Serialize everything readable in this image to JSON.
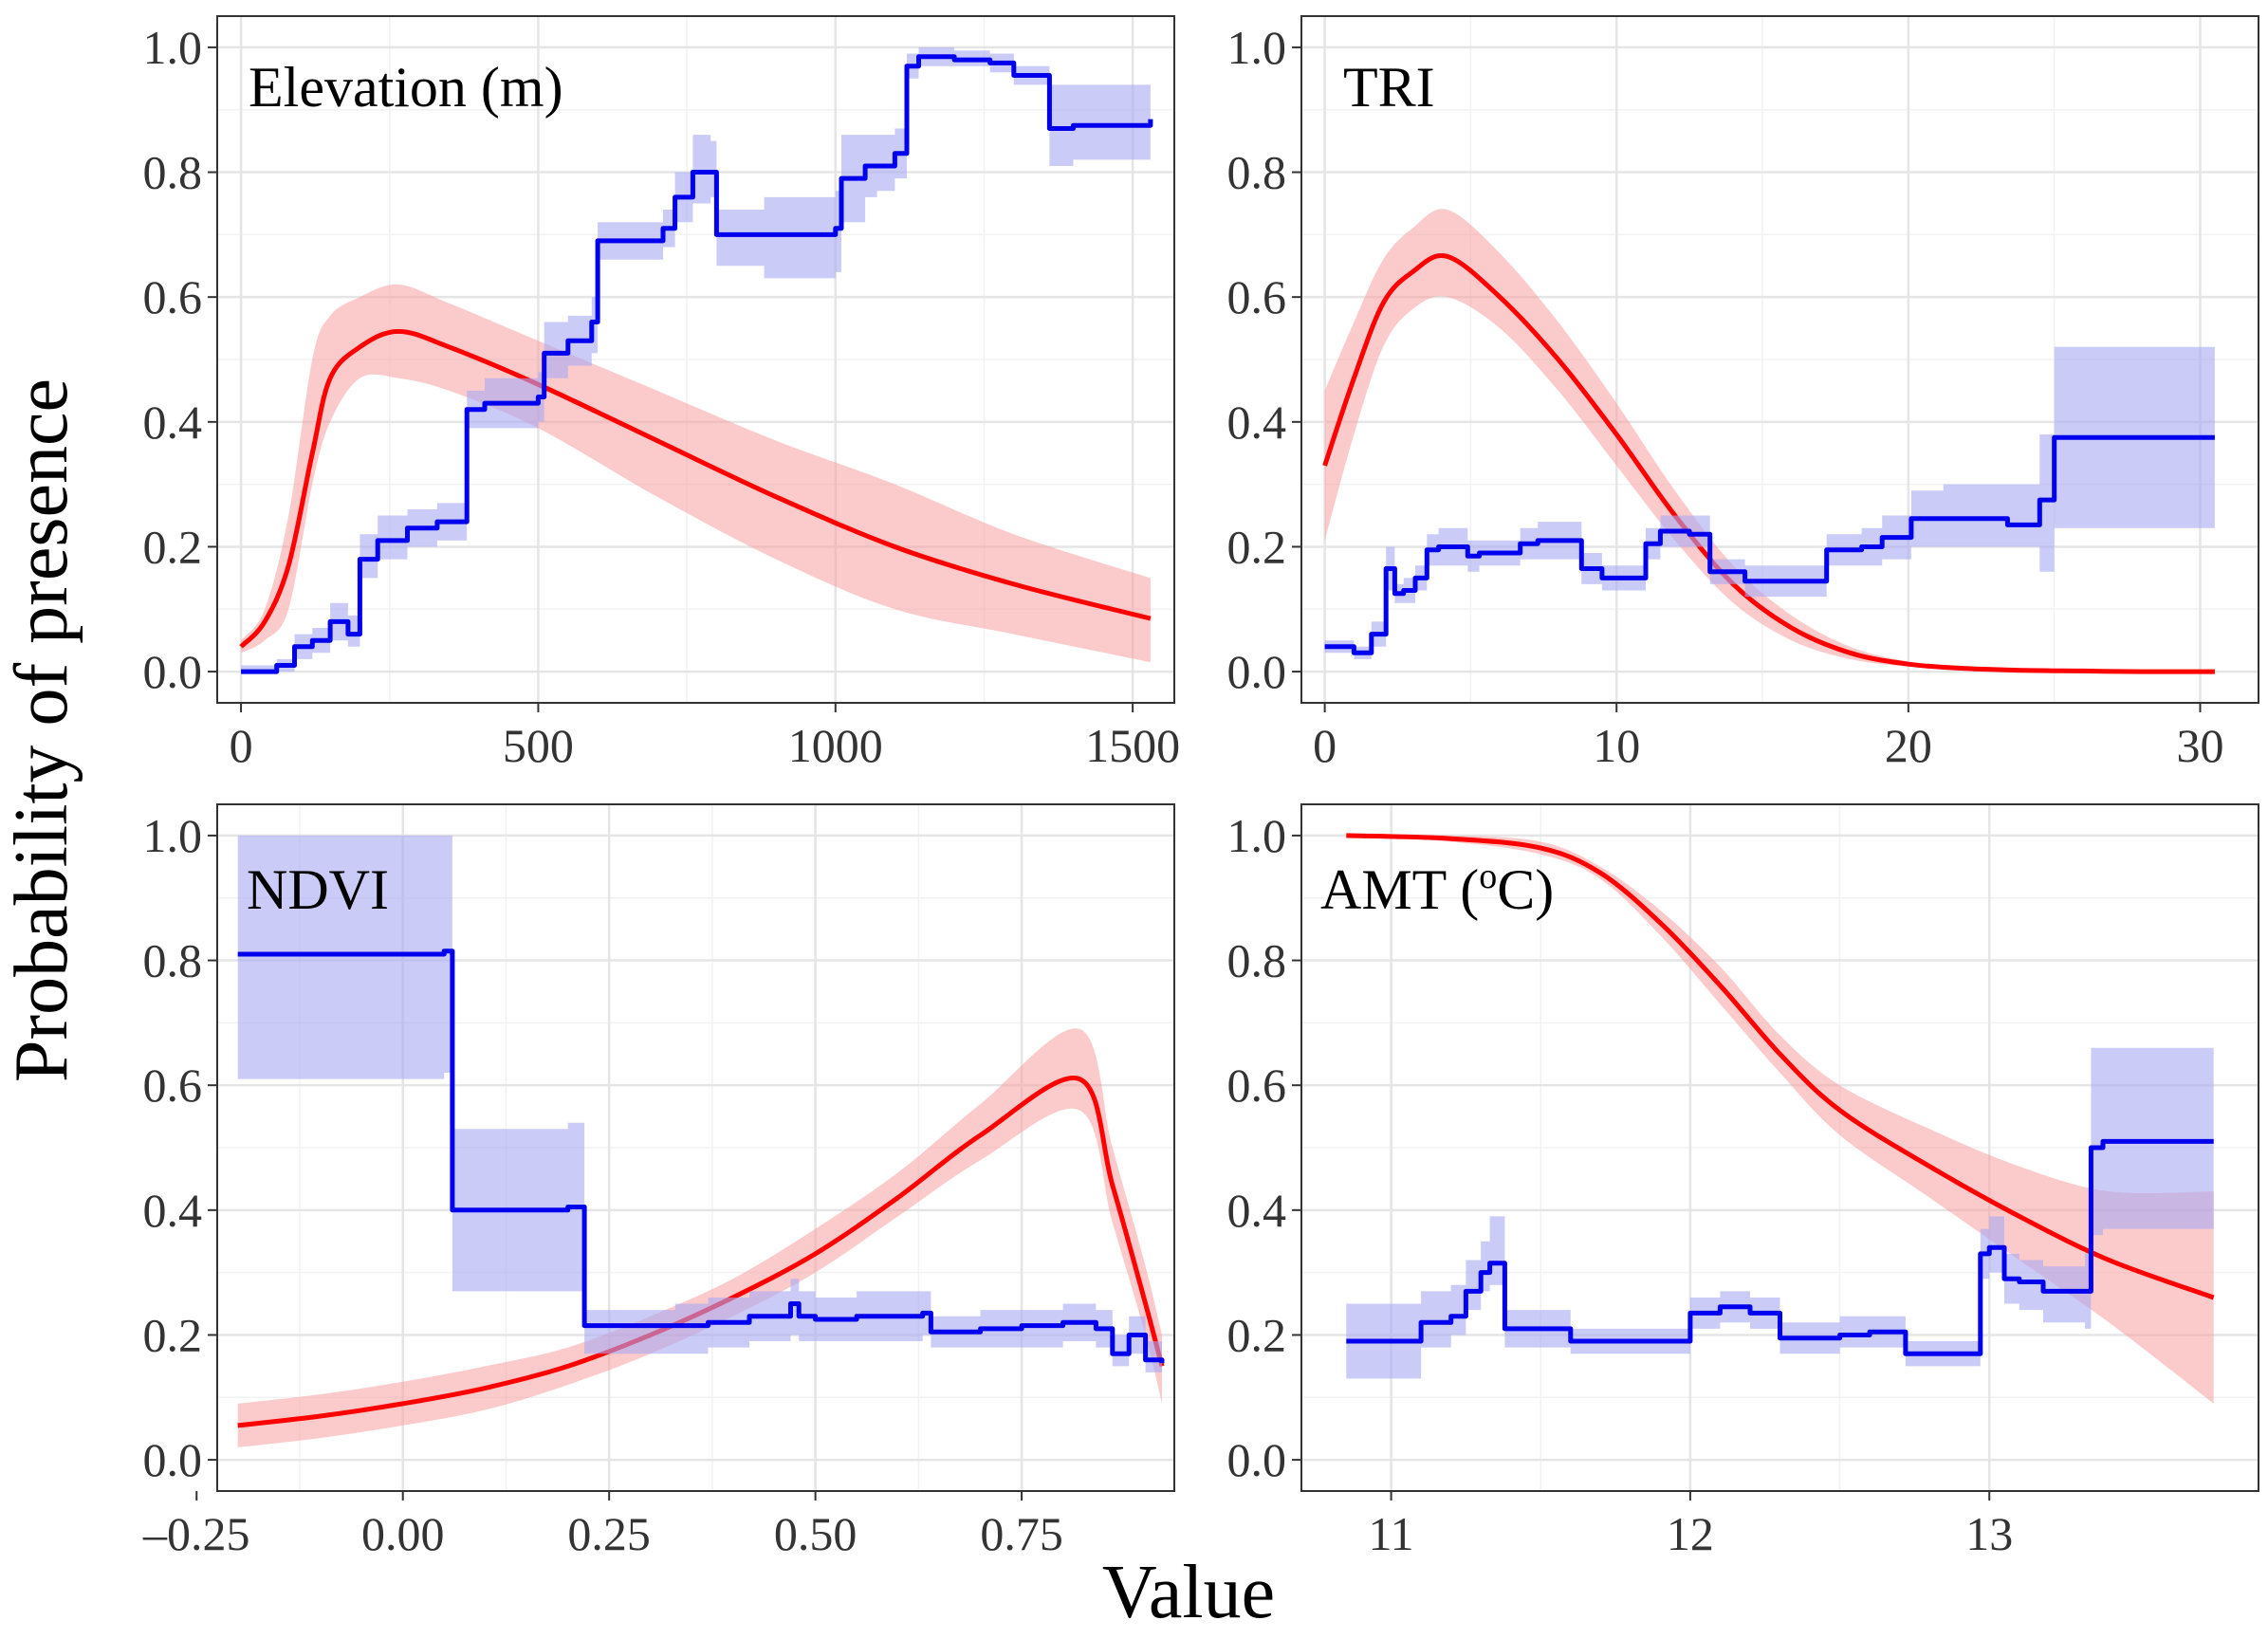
{
  "figure": {
    "ylabel": "Probability of presence",
    "xlabel": "Value",
    "colors": {
      "model_a": "#ff0000",
      "model_a_band": "#f8a0a0",
      "model_b": "#0000ee",
      "model_b_band": "#a8a8f4"
    }
  },
  "chart_data": [
    {
      "type": "line",
      "title": "Elevation (m)",
      "xlim": [
        -40,
        1570
      ],
      "ylim": [
        -0.05,
        1.05
      ],
      "xticks": [
        0,
        500,
        1000,
        1500
      ],
      "xtick_labels": [
        "0",
        "500",
        "1000",
        "1500"
      ],
      "yticks": [
        0,
        0.2,
        0.4,
        0.6,
        0.8,
        1.0
      ],
      "ytick_labels": [
        "0.0",
        "0.2",
        "0.4",
        "0.6",
        "0.8",
        "1.0"
      ],
      "series": [
        {
          "name": "red",
          "kind": "smooth",
          "x": [
            0,
            40,
            80,
            120,
            150,
            200,
            265,
            350,
            500,
            700,
            900,
            1100,
            1300,
            1530
          ],
          "y": [
            0.04,
            0.08,
            0.17,
            0.35,
            0.47,
            0.52,
            0.545,
            0.52,
            0.46,
            0.37,
            0.28,
            0.2,
            0.14,
            0.085
          ],
          "lo": [
            0.03,
            0.05,
            0.1,
            0.3,
            0.4,
            0.47,
            0.47,
            0.45,
            0.39,
            0.28,
            0.18,
            0.1,
            0.06,
            0.015
          ],
          "hi": [
            0.05,
            0.1,
            0.25,
            0.5,
            0.57,
            0.6,
            0.62,
            0.59,
            0.53,
            0.45,
            0.37,
            0.3,
            0.22,
            0.15
          ]
        },
        {
          "name": "blue",
          "kind": "step",
          "x": [
            0,
            60,
            90,
            120,
            150,
            180,
            200,
            230,
            280,
            330,
            380,
            410,
            500,
            510,
            550,
            590,
            600,
            710,
            730,
            760,
            790,
            800,
            880,
            1000,
            1010,
            1050,
            1070,
            1100,
            1120,
            1140,
            1200,
            1260,
            1300,
            1350,
            1360,
            1400,
            1530
          ],
          "y": [
            0.0,
            0.01,
            0.04,
            0.05,
            0.08,
            0.06,
            0.18,
            0.21,
            0.23,
            0.24,
            0.42,
            0.43,
            0.44,
            0.51,
            0.53,
            0.56,
            0.69,
            0.71,
            0.76,
            0.8,
            0.8,
            0.7,
            0.7,
            0.71,
            0.79,
            0.81,
            0.81,
            0.83,
            0.97,
            0.985,
            0.98,
            0.975,
            0.955,
            0.955,
            0.87,
            0.875,
            0.885
          ],
          "lo": [
            0.0,
            0.0,
            0.02,
            0.03,
            0.05,
            0.04,
            0.15,
            0.18,
            0.2,
            0.21,
            0.39,
            0.39,
            0.4,
            0.47,
            0.49,
            0.51,
            0.66,
            0.68,
            0.72,
            0.75,
            0.76,
            0.65,
            0.63,
            0.64,
            0.72,
            0.76,
            0.77,
            0.79,
            0.95,
            0.97,
            0.97,
            0.96,
            0.94,
            0.94,
            0.81,
            0.82,
            0.83
          ],
          "hi": [
            0.01,
            0.02,
            0.06,
            0.07,
            0.11,
            0.09,
            0.22,
            0.25,
            0.26,
            0.27,
            0.45,
            0.47,
            0.48,
            0.56,
            0.57,
            0.6,
            0.72,
            0.74,
            0.8,
            0.86,
            0.85,
            0.74,
            0.76,
            0.77,
            0.86,
            0.86,
            0.86,
            0.87,
            0.99,
            1.0,
            0.995,
            0.99,
            0.97,
            0.97,
            0.94,
            0.94,
            0.945
          ]
        }
      ]
    },
    {
      "type": "line",
      "title": "TRI",
      "xlim": [
        -0.8,
        32
      ],
      "ylim": [
        -0.05,
        1.05
      ],
      "xticks": [
        0,
        10,
        20,
        30
      ],
      "xtick_labels": [
        "0",
        "10",
        "20",
        "30"
      ],
      "yticks": [
        0,
        0.2,
        0.4,
        0.6,
        0.8,
        1.0
      ],
      "ytick_labels": [
        "0.0",
        "0.2",
        "0.4",
        "0.6",
        "0.8",
        "1.0"
      ],
      "series": [
        {
          "name": "red",
          "kind": "smooth",
          "x": [
            0,
            1,
            2,
            3,
            4.2,
            6,
            8,
            10,
            12,
            14,
            16,
            18,
            20,
            22,
            24,
            26,
            28,
            30.5
          ],
          "y": [
            0.33,
            0.47,
            0.59,
            0.64,
            0.665,
            0.6,
            0.5,
            0.38,
            0.25,
            0.14,
            0.07,
            0.03,
            0.012,
            0.005,
            0.002,
            0.001,
            0.0,
            0.0
          ],
          "lo": [
            0.21,
            0.38,
            0.52,
            0.58,
            0.6,
            0.55,
            0.45,
            0.33,
            0.21,
            0.11,
            0.05,
            0.02,
            0.008,
            0.003,
            0.001,
            0.0,
            0.0,
            0.0
          ],
          "hi": [
            0.45,
            0.56,
            0.66,
            0.71,
            0.74,
            0.67,
            0.56,
            0.43,
            0.29,
            0.17,
            0.09,
            0.04,
            0.016,
            0.007,
            0.003,
            0.001,
            0.0,
            0.0
          ],
          "band_end_hi": [
            20,
            0.0
          ]
        },
        {
          "name": "blue",
          "kind": "step",
          "x": [
            0,
            1,
            1.6,
            2.1,
            2.4,
            2.7,
            3.1,
            3.5,
            3.9,
            4.9,
            5.3,
            6.7,
            7.3,
            8.1,
            8.8,
            9.5,
            10.7,
            11,
            11.5,
            12.5,
            13.2,
            13.5,
            14.4,
            17.2,
            18.4,
            19.1,
            20.1,
            21.2,
            23.4,
            23.9,
            24.5,
            25,
            30.5
          ],
          "y": [
            0.04,
            0.03,
            0.06,
            0.165,
            0.125,
            0.13,
            0.15,
            0.195,
            0.2,
            0.185,
            0.19,
            0.205,
            0.21,
            0.21,
            0.165,
            0.15,
            0.15,
            0.205,
            0.225,
            0.22,
            0.16,
            0.16,
            0.145,
            0.195,
            0.2,
            0.215,
            0.245,
            0.245,
            0.235,
            0.235,
            0.275,
            0.375,
            0.375
          ],
          "lo": [
            0.03,
            0.02,
            0.04,
            0.13,
            0.11,
            0.11,
            0.13,
            0.17,
            0.17,
            0.16,
            0.17,
            0.18,
            0.18,
            0.18,
            0.14,
            0.13,
            0.13,
            0.18,
            0.2,
            0.2,
            0.14,
            0.14,
            0.12,
            0.17,
            0.17,
            0.18,
            0.2,
            0.2,
            0.2,
            0.2,
            0.16,
            0.23,
            0.23
          ],
          "hi": [
            0.05,
            0.04,
            0.08,
            0.2,
            0.14,
            0.15,
            0.17,
            0.22,
            0.23,
            0.21,
            0.21,
            0.23,
            0.24,
            0.24,
            0.19,
            0.17,
            0.17,
            0.23,
            0.25,
            0.25,
            0.18,
            0.18,
            0.17,
            0.22,
            0.23,
            0.25,
            0.29,
            0.3,
            0.3,
            0.3,
            0.38,
            0.52,
            0.52
          ]
        }
      ]
    },
    {
      "type": "line",
      "title": "NDVI",
      "xlim": [
        -0.225,
        0.935
      ],
      "ylim": [
        -0.05,
        1.05
      ],
      "xticks": [
        -0.25,
        0,
        0.25,
        0.5,
        0.75
      ],
      "xtick_labels": [
        "–0.25",
        "0.00",
        "0.25",
        "0.50",
        "0.75"
      ],
      "yticks": [
        0,
        0.2,
        0.4,
        0.6,
        0.8,
        1.0
      ],
      "ytick_labels": [
        "0.0",
        "0.2",
        "0.4",
        "0.6",
        "0.8",
        "1.0"
      ],
      "series": [
        {
          "name": "red",
          "kind": "smooth",
          "x": [
            -0.2,
            -0.1,
            0.0,
            0.1,
            0.2,
            0.3,
            0.4,
            0.5,
            0.6,
            0.7,
            0.82,
            0.86,
            0.9,
            0.92
          ],
          "y": [
            0.055,
            0.07,
            0.09,
            0.115,
            0.15,
            0.2,
            0.26,
            0.33,
            0.42,
            0.52,
            0.61,
            0.44,
            0.25,
            0.15
          ],
          "lo": [
            0.02,
            0.035,
            0.055,
            0.08,
            0.12,
            0.17,
            0.23,
            0.3,
            0.39,
            0.48,
            0.56,
            0.38,
            0.2,
            0.09
          ],
          "hi": [
            0.09,
            0.105,
            0.125,
            0.15,
            0.18,
            0.23,
            0.29,
            0.37,
            0.46,
            0.57,
            0.69,
            0.5,
            0.31,
            0.2
          ]
        },
        {
          "name": "blue",
          "kind": "step",
          "x": [
            -0.2,
            0.05,
            0.06,
            0.2,
            0.22,
            0.33,
            0.37,
            0.42,
            0.47,
            0.48,
            0.5,
            0.55,
            0.6,
            0.63,
            0.64,
            0.7,
            0.75,
            0.8,
            0.84,
            0.86,
            0.88,
            0.9,
            0.92
          ],
          "y": [
            0.81,
            0.815,
            0.4,
            0.405,
            0.215,
            0.215,
            0.22,
            0.23,
            0.25,
            0.23,
            0.225,
            0.23,
            0.23,
            0.235,
            0.205,
            0.21,
            0.215,
            0.22,
            0.21,
            0.17,
            0.2,
            0.16,
            0.155
          ],
          "lo": [
            0.61,
            0.62,
            0.27,
            0.27,
            0.17,
            0.17,
            0.18,
            0.19,
            0.2,
            0.19,
            0.19,
            0.19,
            0.19,
            0.2,
            0.18,
            0.18,
            0.18,
            0.19,
            0.18,
            0.15,
            0.17,
            0.14,
            0.14
          ],
          "hi": [
            1.0,
            1.0,
            0.53,
            0.54,
            0.24,
            0.25,
            0.26,
            0.27,
            0.29,
            0.27,
            0.26,
            0.27,
            0.27,
            0.27,
            0.23,
            0.24,
            0.24,
            0.25,
            0.24,
            0.2,
            0.23,
            0.19,
            0.18
          ]
        }
      ]
    },
    {
      "type": "line",
      "title": "AMT (",
      "title_sup": "o",
      "title_end": "C)",
      "xlim": [
        10.7,
        13.9
      ],
      "ylim": [
        -0.05,
        1.05
      ],
      "xticks": [
        11,
        12,
        13
      ],
      "xtick_labels": [
        "11",
        "12",
        "13"
      ],
      "yticks": [
        0,
        0.2,
        0.4,
        0.6,
        0.8,
        1.0
      ],
      "ytick_labels": [
        "0.0",
        "0.2",
        "0.4",
        "0.6",
        "0.8",
        "1.0"
      ],
      "series": [
        {
          "name": "red",
          "kind": "smooth",
          "x": [
            10.85,
            11.2,
            11.5,
            11.7,
            11.9,
            12.1,
            12.3,
            12.5,
            12.8,
            13.1,
            13.4,
            13.75
          ],
          "y": [
            1.0,
            0.995,
            0.98,
            0.94,
            0.86,
            0.76,
            0.65,
            0.56,
            0.47,
            0.39,
            0.32,
            0.26
          ],
          "lo": [
            1.0,
            0.99,
            0.97,
            0.93,
            0.84,
            0.73,
            0.62,
            0.52,
            0.42,
            0.32,
            0.22,
            0.09
          ],
          "hi": [
            1.0,
            1.0,
            0.99,
            0.95,
            0.88,
            0.79,
            0.68,
            0.6,
            0.53,
            0.47,
            0.43,
            0.43
          ]
        },
        {
          "name": "blue",
          "kind": "step",
          "x": [
            10.85,
            11.1,
            11.2,
            11.25,
            11.3,
            11.33,
            11.38,
            11.6,
            11.85,
            11.92,
            12.0,
            12.1,
            12.2,
            12.3,
            12.5,
            12.6,
            12.72,
            12.92,
            12.97,
            13.0,
            13.05,
            13.1,
            13.18,
            13.32,
            13.34,
            13.38,
            13.75
          ],
          "y": [
            0.19,
            0.22,
            0.23,
            0.27,
            0.3,
            0.315,
            0.21,
            0.19,
            0.19,
            0.19,
            0.235,
            0.245,
            0.235,
            0.195,
            0.2,
            0.205,
            0.17,
            0.17,
            0.33,
            0.34,
            0.29,
            0.285,
            0.27,
            0.27,
            0.5,
            0.51,
            0.51
          ],
          "lo": [
            0.13,
            0.18,
            0.2,
            0.24,
            0.27,
            0.28,
            0.18,
            0.17,
            0.17,
            0.17,
            0.21,
            0.22,
            0.21,
            0.17,
            0.18,
            0.18,
            0.15,
            0.15,
            0.29,
            0.3,
            0.25,
            0.24,
            0.22,
            0.21,
            0.36,
            0.37,
            0.37
          ],
          "hi": [
            0.25,
            0.27,
            0.28,
            0.32,
            0.35,
            0.39,
            0.24,
            0.21,
            0.21,
            0.21,
            0.26,
            0.27,
            0.26,
            0.22,
            0.23,
            0.23,
            0.19,
            0.19,
            0.37,
            0.39,
            0.33,
            0.32,
            0.31,
            0.33,
            0.66,
            0.66,
            0.66
          ]
        }
      ]
    }
  ]
}
